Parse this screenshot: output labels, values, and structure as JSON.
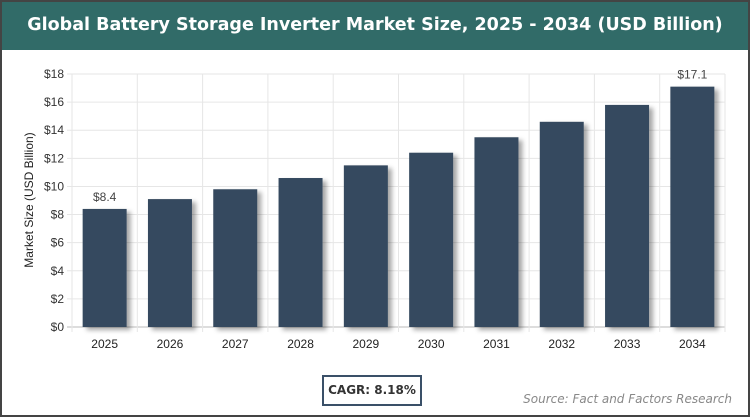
{
  "chart_data": {
    "type": "bar",
    "title": "Global Battery Storage Inverter Market Size, 2025 - 2034 (USD Billion)",
    "ylabel": "Market Size (USD Billion)",
    "xlabel": "",
    "categories": [
      "2025",
      "2026",
      "2027",
      "2028",
      "2029",
      "2030",
      "2031",
      "2032",
      "2033",
      "2034"
    ],
    "values": [
      8.4,
      9.1,
      9.8,
      10.6,
      11.5,
      12.4,
      13.5,
      14.6,
      15.8,
      17.1
    ],
    "data_labels": {
      "0": "$8.4",
      "9": "$17.1"
    },
    "ylim": [
      0,
      18
    ],
    "yticks": [
      0,
      2,
      4,
      6,
      8,
      10,
      12,
      14,
      16,
      18
    ],
    "ytick_labels": [
      "$0",
      "$2",
      "$4",
      "$6",
      "$8",
      "$10",
      "$12",
      "$14",
      "$16",
      "$18"
    ],
    "grid": true,
    "bar_color": "#364a5f",
    "title_bar_color": "#316b68"
  },
  "footer": {
    "cagr": "CAGR: 8.18%",
    "source": "Source: Fact and Factors Research"
  }
}
